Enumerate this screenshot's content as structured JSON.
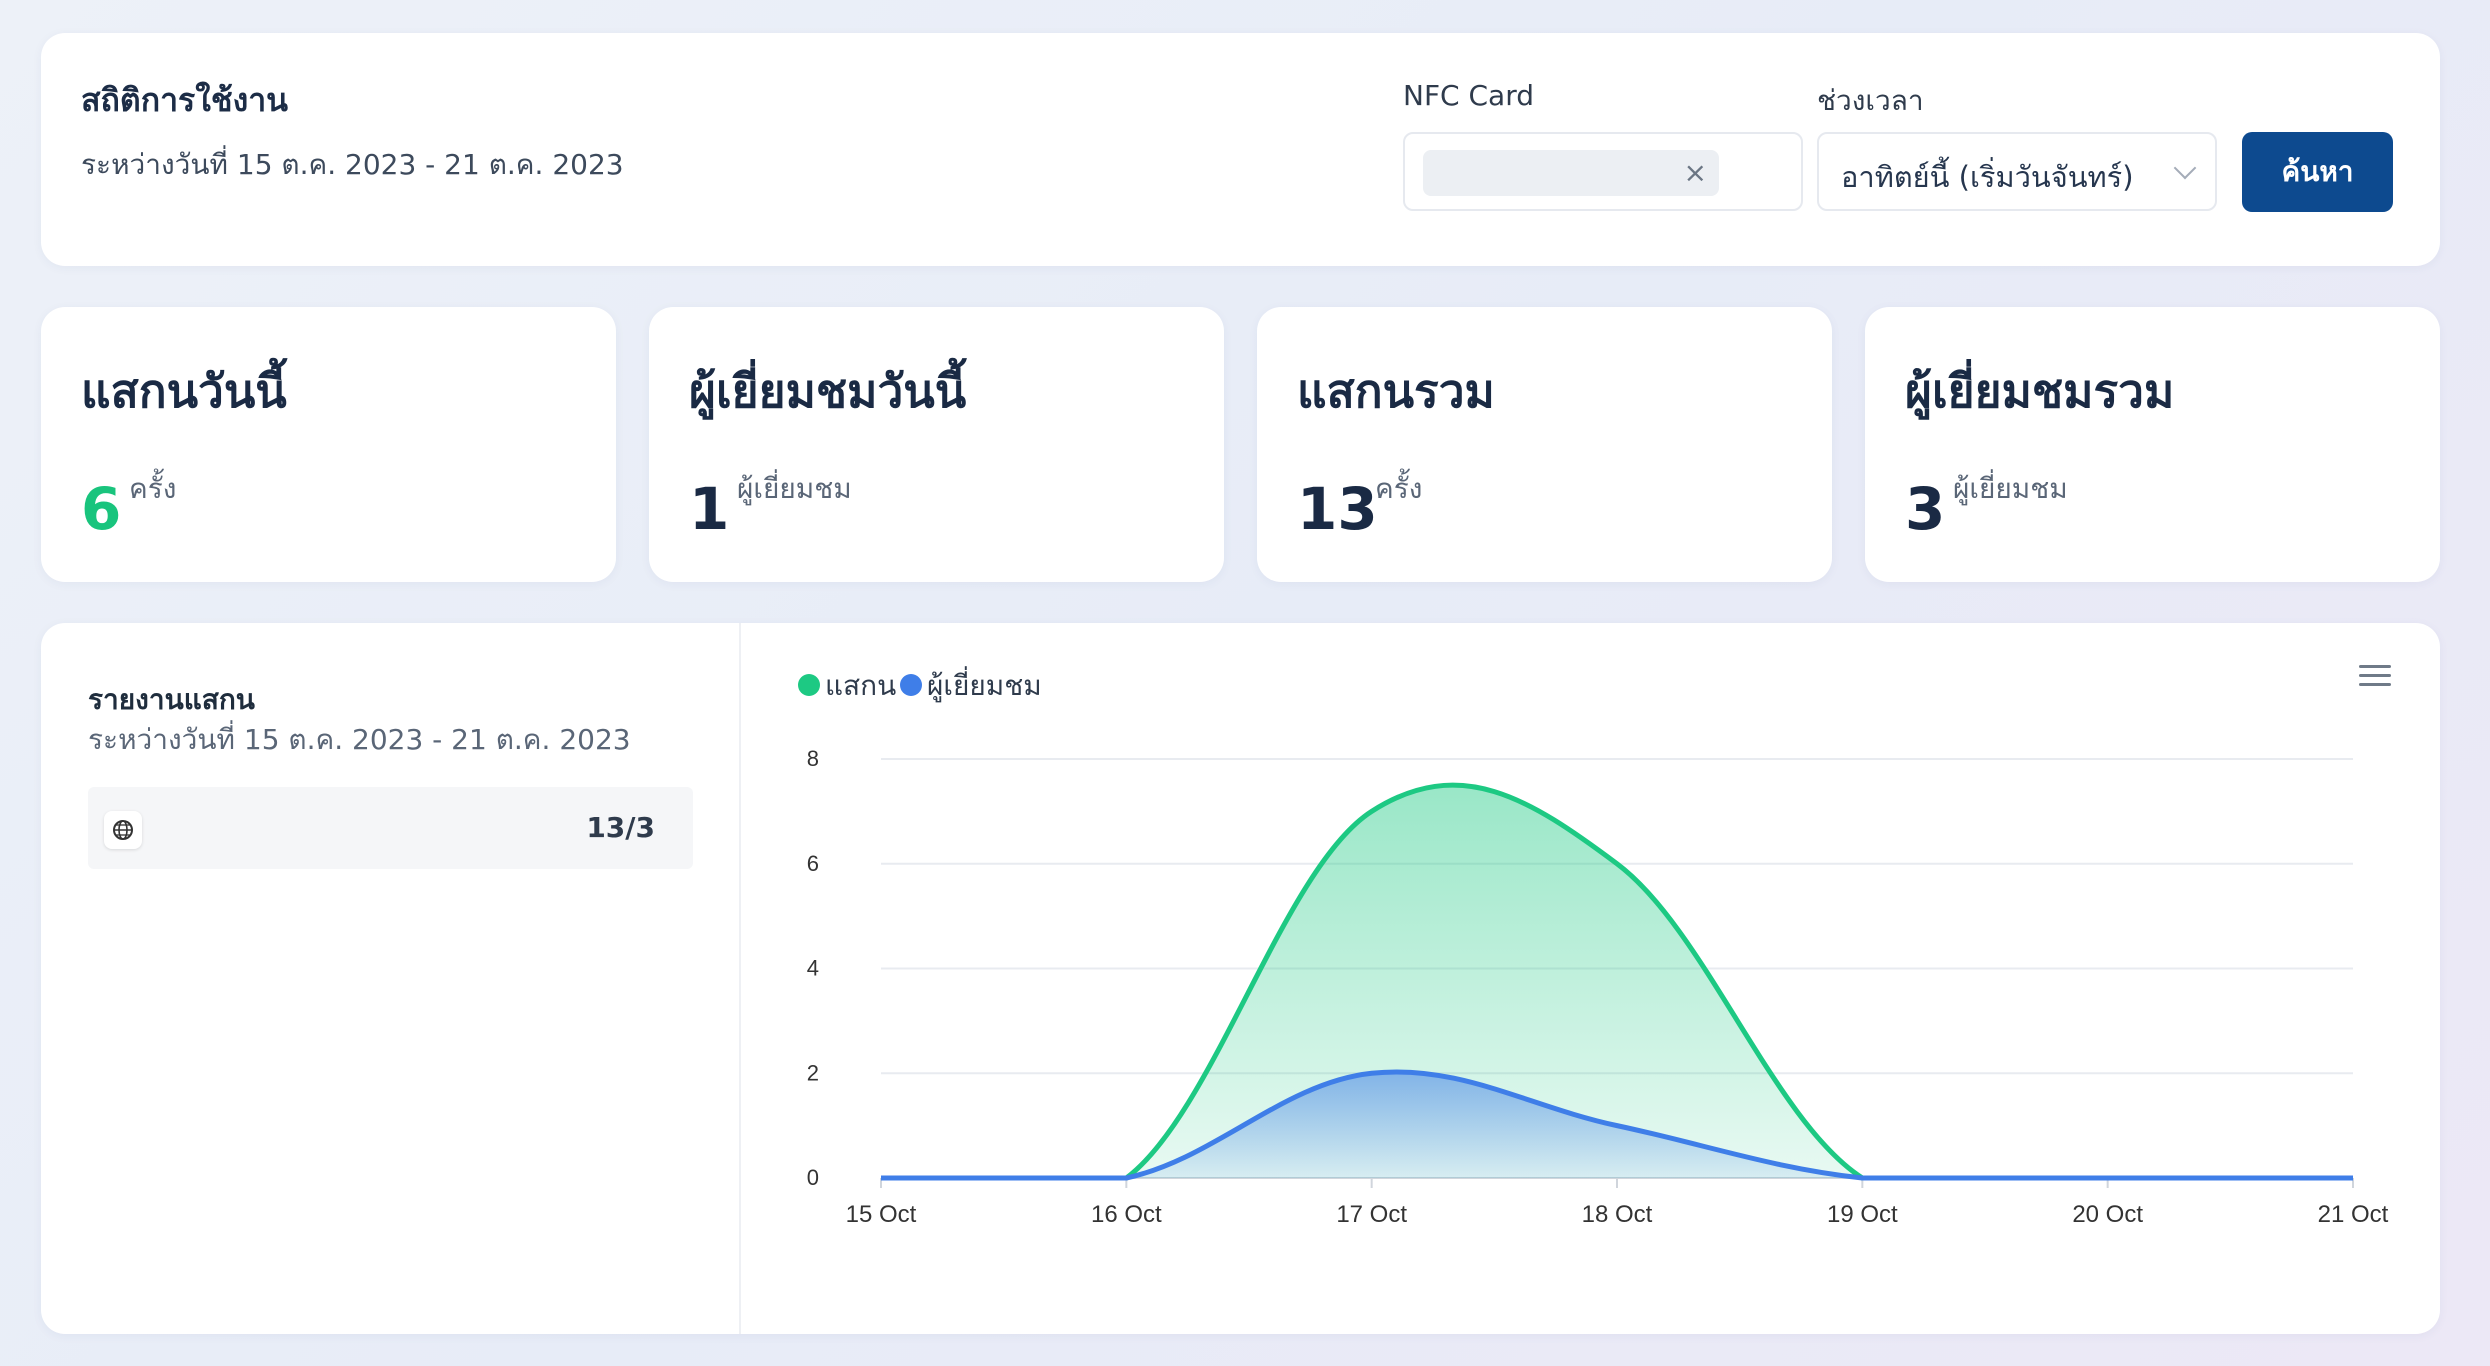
{
  "header": {
    "title": "สถิติการใช้งาน",
    "subtitle": "ระหว่างวันที่ 15 ต.ค. 2023 - 21 ต.ค. 2023",
    "nfc_label": "NFC Card",
    "nfc_value": "",
    "period_label": "ช่วงเวลา",
    "period_value": "อาทิตย์นี้ (เริ่มวันจันทร์)",
    "search_label": "ค้นหา"
  },
  "stats": [
    {
      "title": "แสกนวันนี้",
      "value": "6",
      "unit": "ครั้ง"
    },
    {
      "title": "ผู้เยี่ยมชมวันนี้",
      "value": "1",
      "unit": "ผู้เยี่ยมชม"
    },
    {
      "title": "แสกนรวม",
      "value": "13",
      "unit": "ครั้ง"
    },
    {
      "title": "ผู้เยี่ยมชมรวม",
      "value": "3",
      "unit": "ผู้เยี่ยมชม"
    }
  ],
  "report": {
    "title": "รายงานแสกน",
    "subtitle": "ระหว่างวันที่ 15 ต.ค. 2023 - 21 ต.ค. 2023",
    "row_icon": "globe-icon",
    "row_count": "13/3"
  },
  "chart_data": {
    "type": "area",
    "categories": [
      "15 Oct",
      "16 Oct",
      "17 Oct",
      "18 Oct",
      "19 Oct",
      "20 Oct",
      "21 Oct"
    ],
    "series": [
      {
        "name": "แสกน",
        "values": [
          0,
          0,
          7,
          6,
          0,
          0,
          0
        ],
        "color": "#1dc983"
      },
      {
        "name": "ผู้เยี่ยมชม",
        "values": [
          0,
          0,
          2,
          1,
          0,
          0,
          0
        ],
        "color": "#3f7ee8"
      }
    ],
    "yticks": [
      0,
      2,
      4,
      6,
      8
    ],
    "ylim": [
      0,
      8
    ],
    "grid": true,
    "legend": "top-left"
  }
}
